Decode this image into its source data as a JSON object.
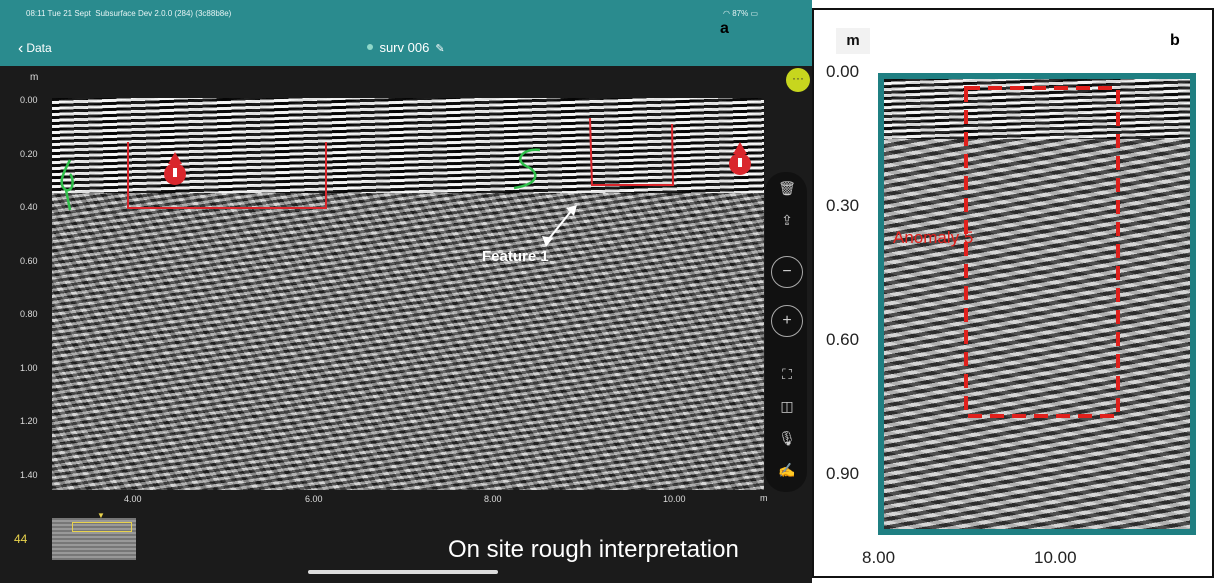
{
  "panel_a": {
    "label": "a",
    "status_bar": {
      "time_date": "08:11  Tue 21 Sept",
      "app_version": "Subsurface Dev 2.0.0 (284) (3c88b8e)",
      "battery": "87%"
    },
    "nav": {
      "back_label": "Data",
      "survey_title": "surv 006"
    },
    "y_axis": {
      "unit": "m",
      "ticks": [
        "0.00",
        "0.20",
        "0.40",
        "0.60",
        "0.80",
        "1.00",
        "1.20",
        "1.40"
      ]
    },
    "x_axis": {
      "unit": "m",
      "ticks": [
        "4.00",
        "6.00",
        "8.00",
        "10.00"
      ]
    },
    "annotation_label": "Feature 1",
    "overview": {
      "trace_count": "44"
    },
    "caption": "On site rough interpretation",
    "colors": {
      "accent": "#2a8b8e",
      "marker_red": "#d9262c",
      "marker_green": "#2fbf4a"
    }
  },
  "panel_b": {
    "label": "b",
    "y_axis": {
      "unit": "m",
      "ticks": [
        "0.00",
        "0.30",
        "0.60",
        "0.90"
      ]
    },
    "x_axis": {
      "ticks": [
        "8.00",
        "10.00"
      ]
    },
    "anomaly_label": "Anomaly 5",
    "colors": {
      "frame": "#1f7f82",
      "anomaly": "#e0201c"
    }
  }
}
